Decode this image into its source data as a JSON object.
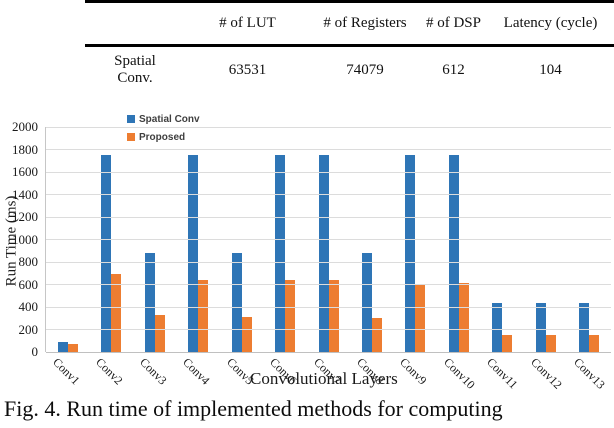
{
  "table": {
    "headers": [
      "",
      "# of LUT",
      "# of Registers",
      "# of DSP",
      "Latency (cycle)"
    ],
    "rows": [
      {
        "label": "Spatial Conv.",
        "values": [
          "63531",
          "74079",
          "612",
          "104"
        ]
      }
    ]
  },
  "chart_data": {
    "type": "bar",
    "title": "",
    "categories": [
      "Conv1",
      "Conv2",
      "Conv3",
      "Conv4",
      "Conv5",
      "Conv6",
      "Conv7",
      "Conv8",
      "Conv9",
      "Conv10",
      "Conv11",
      "Conv12",
      "Conv13"
    ],
    "series": [
      {
        "name": "Spatial Conv",
        "color": "#2E75B6",
        "values": [
          85,
          1750,
          880,
          1750,
          880,
          1750,
          1750,
          880,
          1750,
          1750,
          440,
          440,
          440
        ]
      },
      {
        "name": "Proposed",
        "color": "#ED7D31",
        "values": [
          75,
          690,
          330,
          640,
          310,
          640,
          640,
          305,
          600,
          610,
          150,
          150,
          150
        ]
      }
    ],
    "xlabel": "Convolutional Layers",
    "ylabel": "Run Time (ms)",
    "ylim": [
      0,
      2000
    ],
    "ytick_step": 200,
    "grid": true,
    "legend_position": "top-left-inside",
    "gridline_color": "#dcdcdc"
  },
  "caption": "Fig. 4. Run time of implemented methods for computing"
}
